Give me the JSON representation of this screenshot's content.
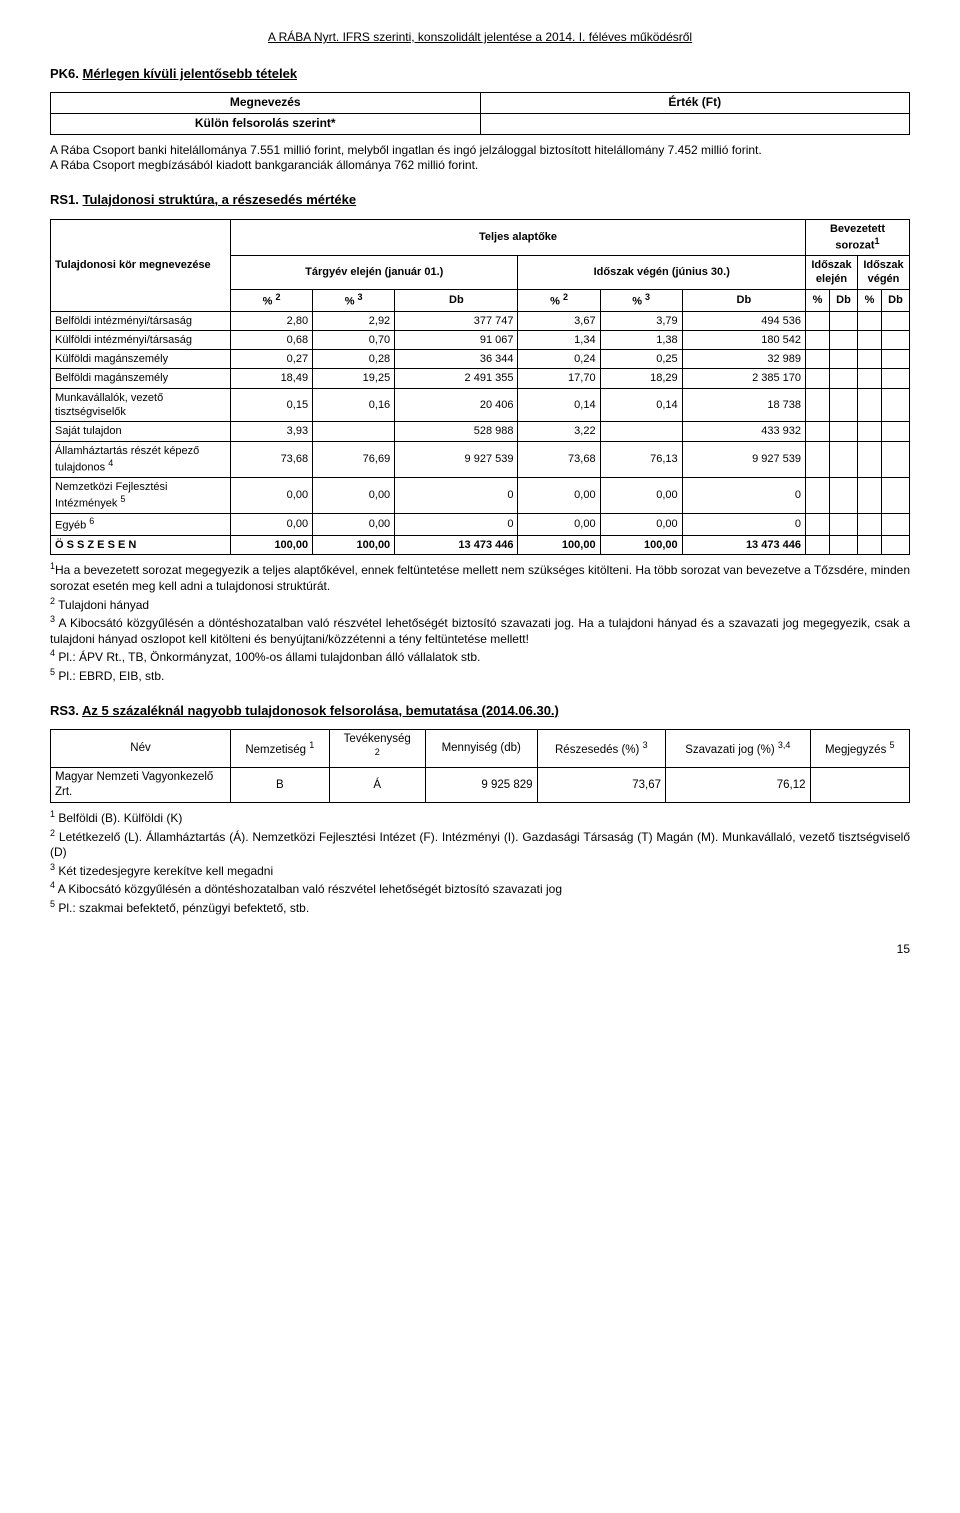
{
  "header": "A RÁBA Nyrt. IFRS szerinti, konszolidált jelentése a 2014. I. féléves működésről",
  "pk6": {
    "title_prefix": "PK6. ",
    "title": "Mérlegen kívüli jelentősebb tételek",
    "col1": "Megnevezés",
    "col2": "Érték (Ft)",
    "row1": "Külön felsorolás szerint*",
    "para": "A Rába Csoport banki hitelállománya 7.551 millió forint, melyből ingatlan és ingó jelzáloggal biztosított hitelállomány 7.452 millió forint.\nA Rába Csoport megbízásából kiadott bankgaranciák állománya 762 millió forint."
  },
  "rs1": {
    "title_prefix": "RS1. ",
    "title": "Tulajdonosi struktúra, a részesedés mértéke",
    "rowhead": "Tulajdonosi kör megnevezése",
    "h_teljes": "Teljes alaptőke",
    "h_bevez": "Bevezetett sorozat",
    "sup1": "1",
    "h_targy": "Tárgyév elején (január 01.)",
    "h_idoszak": "Időszak végén (június 30.)",
    "h_id_el": "Időszak elején",
    "h_id_veg": "Időszak végén",
    "pct2": "%",
    "sup2": "2",
    "pct3": "%",
    "sup3": "3",
    "db": "Db",
    "rows": [
      {
        "label": "Belföldi intézményi/társaság",
        "a": "2,80",
        "b": "2,92",
        "c": "377 747",
        "d": "3,67",
        "e": "3,79",
        "f": "494 536"
      },
      {
        "label": "Külföldi intézményi/társaság",
        "a": "0,68",
        "b": "0,70",
        "c": "91 067",
        "d": "1,34",
        "e": "1,38",
        "f": "180 542"
      },
      {
        "label": "Külföldi magánszemély",
        "a": "0,27",
        "b": "0,28",
        "c": "36 344",
        "d": "0,24",
        "e": "0,25",
        "f": "32 989"
      },
      {
        "label": "Belföldi magánszemély",
        "a": "18,49",
        "b": "19,25",
        "c": "2 491 355",
        "d": "17,70",
        "e": "18,29",
        "f": "2 385 170"
      },
      {
        "label": "Munkavállalók, vezető tisztségviselők",
        "a": "0,15",
        "b": "0,16",
        "c": "20 406",
        "d": "0,14",
        "e": "0,14",
        "f": "18 738"
      },
      {
        "label": "Saját tulajdon",
        "a": "3,93",
        "b": "",
        "c": "528 988",
        "d": "3,22",
        "e": "",
        "f": "433 932"
      },
      {
        "label": "Államháztartás részét képező tulajdonos ",
        "sup": "4",
        "a": "73,68",
        "b": "76,69",
        "c": "9 927 539",
        "d": "73,68",
        "e": "76,13",
        "f": "9 927 539"
      },
      {
        "label": "Nemzetközi Fejlesztési Intézmények ",
        "sup": "5",
        "a": "0,00",
        "b": "0,00",
        "c": "0",
        "d": "0,00",
        "e": "0,00",
        "f": "0"
      },
      {
        "label": "Egyéb ",
        "sup": "6",
        "a": "0,00",
        "b": "0,00",
        "c": "0",
        "d": "0,00",
        "e": "0,00",
        "f": "0"
      }
    ],
    "total": {
      "label": "Ö S S Z E S E N",
      "a": "100,00",
      "b": "100,00",
      "c": "13 473 446",
      "d": "100,00",
      "e": "100,00",
      "f": "13 473 446"
    },
    "foot1": "Ha a bevezetett sorozat megegyezik a teljes alaptőkével, ennek feltüntetése mellett nem szükséges kitölteni. Ha több sorozat van bevezetve a Tőzsdére, minden sorozat esetén meg kell adni a tulajdonosi struktúrát.",
    "foot2": "Tulajdoni hányad",
    "foot3": "A Kibocsátó közgyűlésén a döntéshozatalban való részvétel lehetőségét biztosító szavazati jog. Ha a tulajdoni hányad és a szavazati jog megegyezik, csak a tulajdoni hányad oszlopot kell kitölteni és benyújtani/közzétenni a tény feltüntetése mellett!",
    "foot4": "Pl.: ÁPV Rt., TB, Önkormányzat, 100%-os állami tulajdonban álló vállalatok stb.",
    "foot5": "Pl.: EBRD, EIB, stb."
  },
  "rs3": {
    "title_prefix": "RS3. ",
    "title": "Az 5 százaléknál nagyobb tulajdonosok felsorolása, bemutatása (2014.06.30.)",
    "h_nev": "Név",
    "h_nemz": "Nemzetiség ",
    "s1": "1",
    "h_tev": "Tevékenység",
    "s2": "2",
    "h_menny": "Mennyiség (db)",
    "h_resz": "Részesedés (%) ",
    "s3": "3",
    "h_szav": "Szavazati jog (%) ",
    "s34": "3,4",
    "h_megj": "Megjegyzés ",
    "s5": "5",
    "row": {
      "nev": "Magyar Nemzeti Vagyonkezelő Zrt.",
      "nemz": "B",
      "tev": "Á",
      "menny": "9 925 829",
      "resz": "73,67",
      "szav": "76,12",
      "megj": ""
    },
    "foot1": "Belföldi (B). Külföldi (K)",
    "foot2": "Letétkezelő (L). Államháztartás (Á). Nemzetközi Fejlesztési Intézet (F). Intézményi (I). Gazdasági Társaság (T) Magán (M). Munkavállaló, vezető tisztségviselő (D)",
    "foot3": "Két tizedesjegyre kerekítve kell megadni",
    "foot4": "A Kibocsátó közgyűlésén a döntéshozatalban való részvétel lehetőségét biztosító szavazati jog",
    "foot5": "Pl.: szakmai befektető, pénzügyi befektető, stb."
  },
  "pagenum": "15"
}
